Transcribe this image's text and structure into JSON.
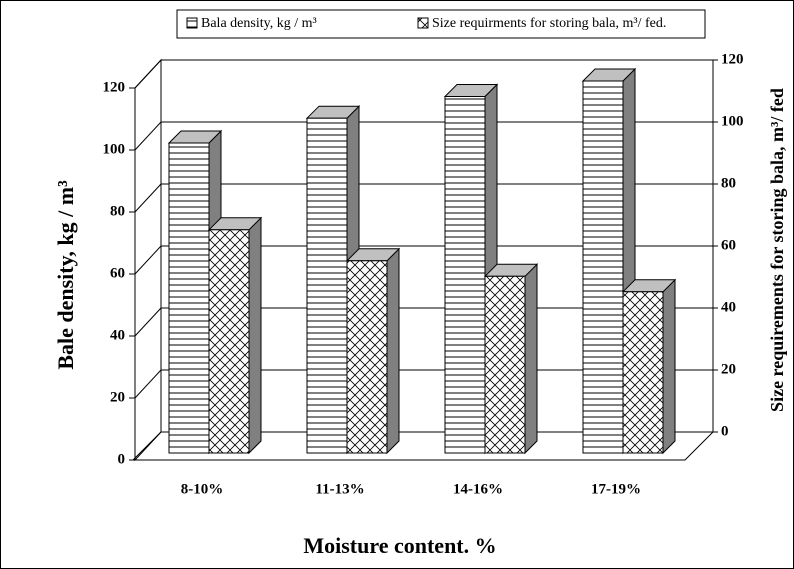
{
  "chart_data": {
    "type": "bar3d",
    "categories": [
      "8-10%",
      "11-13%",
      "14-16%",
      "17-19%"
    ],
    "series": [
      {
        "name": "Bala density, kg / m³",
        "values": [
          100,
          108,
          115,
          120
        ]
      },
      {
        "name": "Size requirments for storing bala, m³/ fed.",
        "values": [
          72,
          62,
          57,
          52
        ],
        "axis": "y2"
      }
    ],
    "x_label": "Moisture content. %",
    "y_label": "Bale density, kg / m³",
    "y2_label": "Size requirements for storing bala, m³/ fed",
    "ylim": [
      0,
      120
    ],
    "yticks": [
      0,
      20,
      40,
      60,
      80,
      100,
      120
    ],
    "y2lim": [
      0,
      120
    ],
    "y2ticks": [
      0,
      20,
      40,
      60,
      80,
      100,
      120
    ],
    "grid": true
  }
}
